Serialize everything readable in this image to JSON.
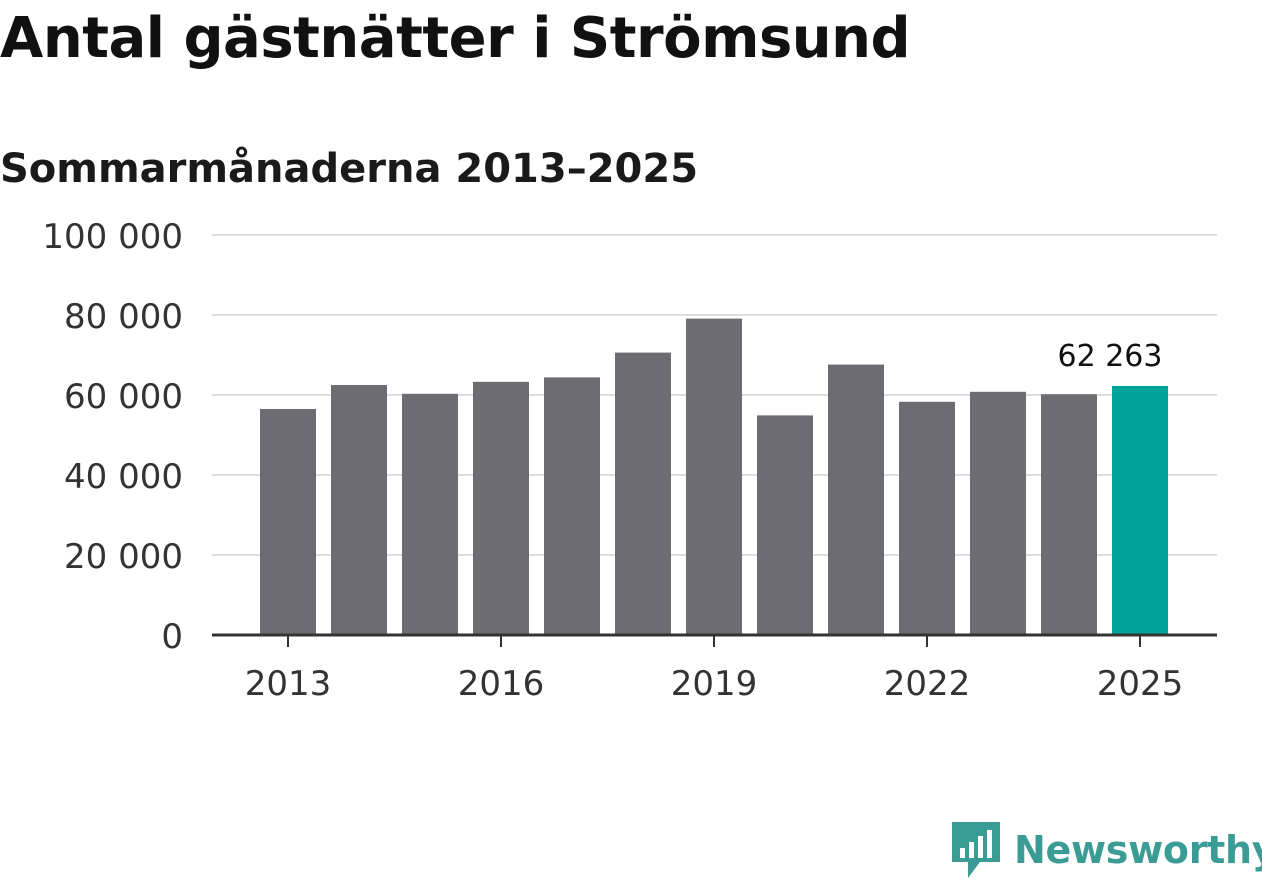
{
  "title": "Antal gästnätter i Strömsund",
  "subtitle": "Sommarmånaderna 2013–2025",
  "brand": {
    "name": "Newsworthy",
    "icon": "newsworthy-logo-icon",
    "color": "#3b9b95"
  },
  "colors": {
    "bar": "#6d6c72",
    "highlight": "#00a39a",
    "grid": "#dddddd",
    "axis": "#333333"
  },
  "chart_data": {
    "type": "bar",
    "categories": [
      "2013",
      "2014",
      "2015",
      "2016",
      "2017",
      "2018",
      "2019",
      "2020",
      "2021",
      "2022",
      "2023",
      "2024",
      "2025"
    ],
    "values": [
      56500,
      62500,
      60300,
      63300,
      64400,
      70600,
      79100,
      54900,
      67600,
      58300,
      60800,
      60200,
      62263
    ],
    "highlight_index": 12,
    "data_labels": [
      {
        "index": 12,
        "text": "62 263"
      }
    ],
    "x_tick_labels": [
      "2013",
      "2016",
      "2019",
      "2022",
      "2025"
    ],
    "y_ticks": [
      0,
      20000,
      40000,
      60000,
      80000,
      100000
    ],
    "y_tick_labels": [
      "0",
      "20 000",
      "40 000",
      "60 000",
      "80 000",
      "100 000"
    ],
    "ylim": [
      0,
      100000
    ],
    "grid": true,
    "legend": false,
    "xlabel": "",
    "ylabel": ""
  }
}
